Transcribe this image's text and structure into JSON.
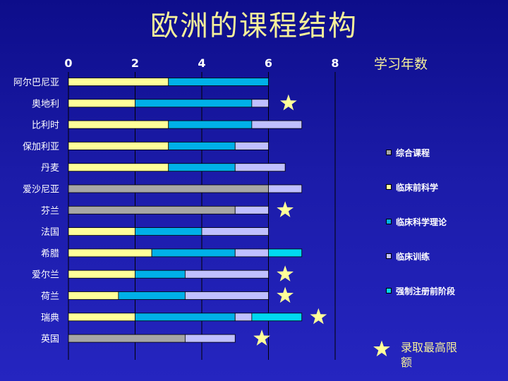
{
  "page": {
    "title": "欧洲的课程结构"
  },
  "chart_data": {
    "type": "bar",
    "orientation": "horizontal",
    "stacked": true,
    "title": "欧洲的课程结构",
    "xlabel": "学习年数",
    "xlim": [
      0,
      8
    ],
    "xticks": [
      0,
      2,
      4,
      6,
      8
    ],
    "grid": "vertical",
    "legend_position": "right",
    "categories": [
      "阿尔巴尼亚",
      "奥地利",
      "比利时",
      "保加利亚",
      "丹麦",
      "爱沙尼亚",
      "芬兰",
      "法国",
      "希腊",
      "爱尔兰",
      "荷兰",
      "瑞典",
      "英国"
    ],
    "series": [
      {
        "name": "综合课程",
        "color": "#a6a6a6",
        "values": [
          0,
          0,
          0,
          0,
          0,
          6,
          5,
          0,
          0,
          0,
          0,
          0,
          3.5
        ]
      },
      {
        "name": "临床前科学",
        "color": "#ffff99",
        "values": [
          3,
          2,
          3,
          3,
          3,
          0,
          0,
          2,
          2.5,
          2,
          1.5,
          2,
          0
        ]
      },
      {
        "name": "临床科学理论",
        "color": "#00b0e8",
        "values": [
          3,
          3.5,
          2.5,
          2,
          2,
          0,
          0,
          2,
          2.5,
          1.5,
          2,
          3,
          0
        ]
      },
      {
        "name": "临床训练",
        "color": "#c0c0ff",
        "values": [
          0,
          0.5,
          1.5,
          1,
          1.5,
          1,
          1,
          2,
          1,
          2.5,
          2.5,
          0.5,
          1.5
        ]
      },
      {
        "name": "强制注册前阶段",
        "color": "#00d8f0",
        "values": [
          0,
          0,
          0,
          0,
          0,
          0,
          0,
          0,
          1,
          0,
          0,
          1.5,
          0
        ]
      }
    ],
    "stars": [
      {
        "category": "奥地利",
        "x": 6.6
      },
      {
        "category": "芬兰",
        "x": 6.5
      },
      {
        "category": "爱尔兰",
        "x": 6.5
      },
      {
        "category": "荷兰",
        "x": 6.5
      },
      {
        "category": "瑞典",
        "x": 7.5
      },
      {
        "category": "英国",
        "x": 5.8
      }
    ],
    "star_legend": "录取最高限额"
  }
}
